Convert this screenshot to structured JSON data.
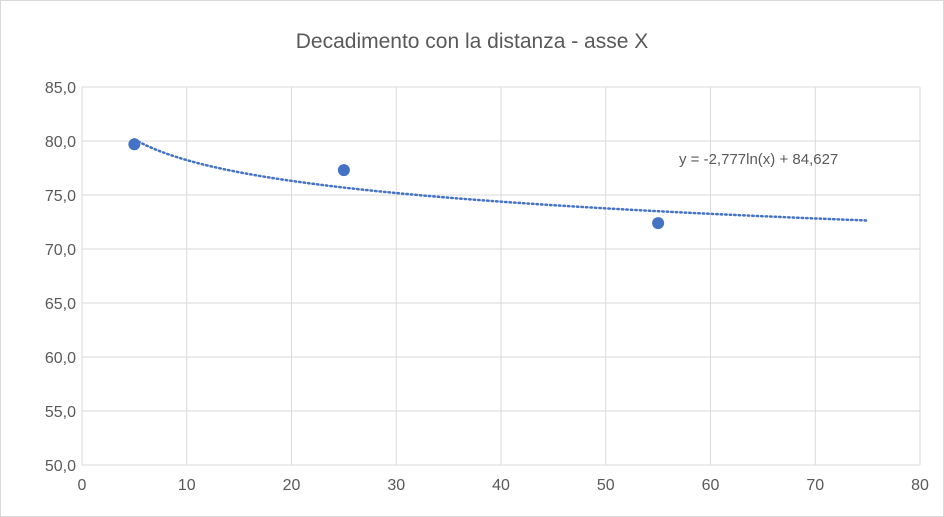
{
  "chart_data": {
    "type": "scatter",
    "title": "Decadimento con la distanza - asse X",
    "xlabel": "",
    "ylabel": "",
    "xlim": [
      0,
      80
    ],
    "ylim": [
      50,
      85
    ],
    "x_ticks": [
      "0",
      "10",
      "20",
      "30",
      "40",
      "50",
      "60",
      "70",
      "80"
    ],
    "y_ticks": [
      "50,0",
      "55,0",
      "60,0",
      "65,0",
      "70,0",
      "75,0",
      "80,0",
      "85,0"
    ],
    "grid": true,
    "series": [
      {
        "points": [
          {
            "x": 5,
            "y": 79.7
          },
          {
            "x": 25,
            "y": 77.3
          },
          {
            "x": 55,
            "y": 72.4
          }
        ],
        "color": "#4472c4"
      }
    ],
    "trendline": {
      "type": "logarithmic",
      "a": -2.777,
      "b": 84.627,
      "x_range": [
        5,
        75
      ],
      "color": "#4472c4",
      "label": "y = -2,777ln(x) + 84,627"
    }
  }
}
